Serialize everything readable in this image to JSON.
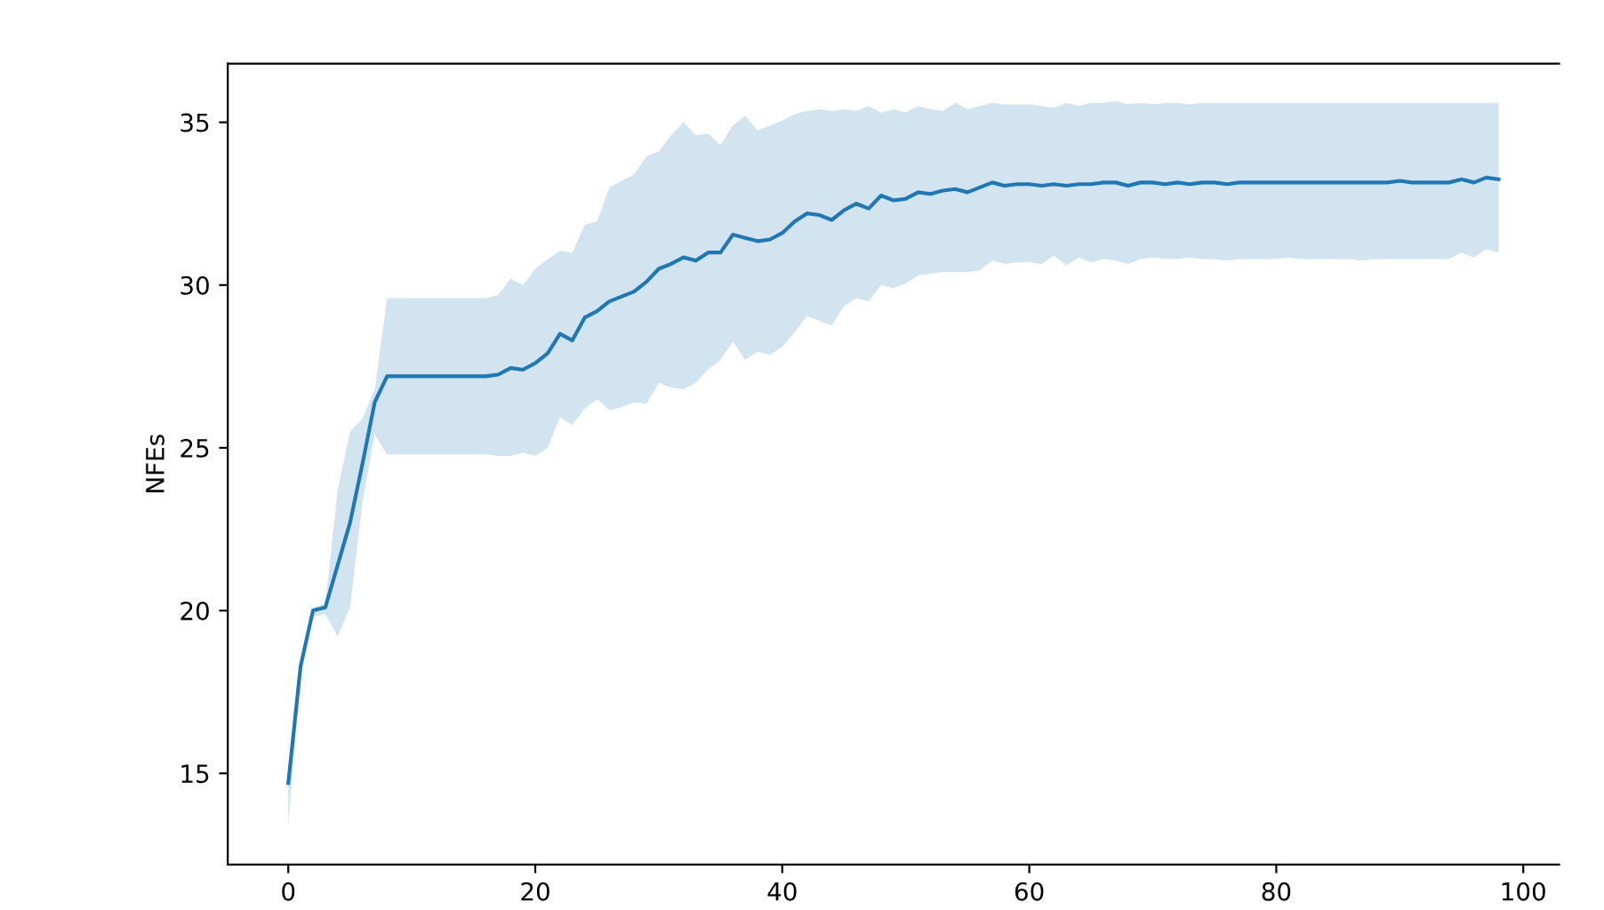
{
  "chart_data": {
    "type": "line",
    "ylabel": "NFEs",
    "x": [
      0,
      1,
      2,
      3,
      4,
      5,
      6,
      7,
      8,
      9,
      10,
      11,
      12,
      13,
      14,
      15,
      16,
      17,
      18,
      19,
      20,
      21,
      22,
      23,
      24,
      25,
      26,
      27,
      28,
      29,
      30,
      31,
      32,
      33,
      34,
      35,
      36,
      37,
      38,
      39,
      40,
      41,
      42,
      43,
      44,
      45,
      46,
      47,
      48,
      49,
      50,
      51,
      52,
      53,
      54,
      55,
      56,
      57,
      58,
      59,
      60,
      61,
      62,
      63,
      64,
      65,
      66,
      67,
      68,
      69,
      70,
      71,
      72,
      73,
      74,
      75,
      76,
      77,
      78,
      79,
      80,
      81,
      82,
      83,
      84,
      85,
      86,
      87,
      88,
      89,
      90,
      91,
      92,
      93,
      94,
      95,
      96,
      97,
      98
    ],
    "series": [
      {
        "color": "#1f77b4",
        "values": [
          14.7,
          18.3,
          20.0,
          20.1,
          21.4,
          22.7,
          24.5,
          26.4,
          27.2,
          27.2,
          27.2,
          27.2,
          27.2,
          27.2,
          27.2,
          27.2,
          27.2,
          27.25,
          27.45,
          27.4,
          27.6,
          27.9,
          28.5,
          28.3,
          29.0,
          29.2,
          29.5,
          29.65,
          29.8,
          30.1,
          30.5,
          30.65,
          30.85,
          30.75,
          31.0,
          31.0,
          31.55,
          31.45,
          31.35,
          31.4,
          31.6,
          31.95,
          32.2,
          32.15,
          32.0,
          32.3,
          32.5,
          32.35,
          32.75,
          32.6,
          32.65,
          32.85,
          32.8,
          32.9,
          32.95,
          32.85,
          33.0,
          33.15,
          33.05,
          33.1,
          33.1,
          33.05,
          33.1,
          33.05,
          33.1,
          33.1,
          33.15,
          33.15,
          33.05,
          33.15,
          33.15,
          33.1,
          33.15,
          33.1,
          33.15,
          33.15,
          33.1,
          33.15,
          33.15,
          33.15,
          33.15,
          33.15,
          33.15,
          33.15,
          33.15,
          33.15,
          33.15,
          33.15,
          33.15,
          33.15,
          33.2,
          33.15,
          33.15,
          33.15,
          33.15,
          33.25,
          33.15,
          33.3,
          33.25
        ],
        "lower": [
          13.4,
          18.0,
          19.8,
          19.9,
          19.2,
          20.1,
          23.3,
          25.4,
          24.8,
          24.8,
          24.8,
          24.8,
          24.8,
          24.8,
          24.8,
          24.8,
          24.8,
          24.75,
          24.75,
          24.85,
          24.75,
          25.0,
          25.95,
          25.7,
          26.2,
          26.5,
          26.15,
          26.25,
          26.4,
          26.35,
          27.0,
          26.85,
          26.8,
          27.0,
          27.4,
          27.7,
          28.25,
          27.7,
          27.95,
          27.85,
          28.1,
          28.55,
          29.05,
          28.9,
          28.75,
          29.35,
          29.6,
          29.5,
          30.0,
          29.9,
          30.05,
          30.3,
          30.35,
          30.4,
          30.4,
          30.4,
          30.45,
          30.75,
          30.65,
          30.7,
          30.7,
          30.65,
          30.9,
          30.6,
          30.85,
          30.7,
          30.8,
          30.75,
          30.65,
          30.8,
          30.85,
          30.8,
          30.8,
          30.85,
          30.8,
          30.8,
          30.75,
          30.8,
          30.8,
          30.8,
          30.8,
          30.85,
          30.8,
          30.8,
          30.8,
          30.8,
          30.8,
          30.75,
          30.8,
          30.8,
          30.8,
          30.8,
          30.8,
          30.8,
          30.8,
          31.0,
          30.85,
          31.1,
          31.0
        ],
        "upper": [
          14.7,
          18.5,
          20.1,
          20.2,
          23.7,
          25.5,
          25.9,
          26.8,
          29.6,
          29.6,
          29.6,
          29.6,
          29.6,
          29.6,
          29.6,
          29.6,
          29.6,
          29.7,
          30.2,
          30.0,
          30.5,
          30.8,
          31.05,
          31.0,
          31.85,
          31.95,
          33.0,
          33.2,
          33.4,
          33.95,
          34.1,
          34.6,
          35.0,
          34.6,
          34.65,
          34.3,
          34.9,
          35.2,
          34.75,
          34.9,
          35.05,
          35.25,
          35.35,
          35.4,
          35.35,
          35.4,
          35.35,
          35.5,
          35.3,
          35.4,
          35.3,
          35.5,
          35.4,
          35.35,
          35.6,
          35.4,
          35.5,
          35.6,
          35.55,
          35.55,
          35.55,
          35.5,
          35.45,
          35.6,
          35.5,
          35.6,
          35.6,
          35.65,
          35.55,
          35.6,
          35.55,
          35.6,
          35.6,
          35.55,
          35.6,
          35.6,
          35.6,
          35.6,
          35.6,
          35.6,
          35.6,
          35.6,
          35.6,
          35.6,
          35.6,
          35.6,
          35.6,
          35.6,
          35.6,
          35.6,
          35.6,
          35.6,
          35.6,
          35.6,
          35.6,
          35.6,
          35.6,
          35.6,
          35.6
        ]
      }
    ],
    "xlim": [
      -4.9,
      102.9
    ],
    "ylim": [
      12.2,
      36.8
    ],
    "xticks": [
      0,
      20,
      40,
      60,
      80,
      100
    ],
    "yticks": [
      15,
      20,
      25,
      30,
      35
    ],
    "grid": false,
    "legend": false
  }
}
